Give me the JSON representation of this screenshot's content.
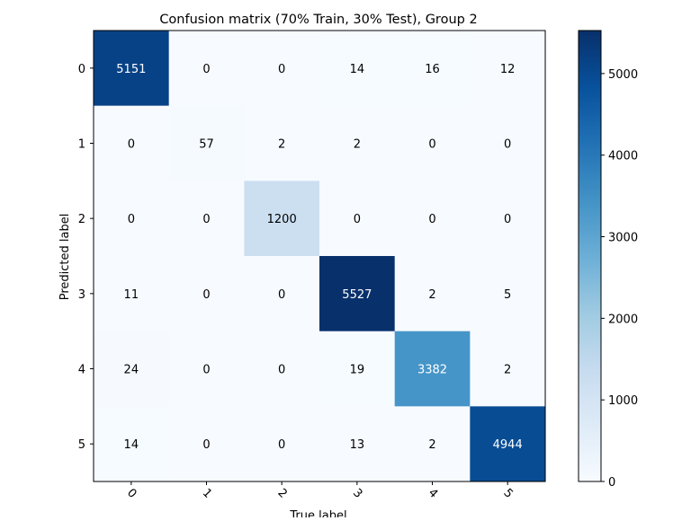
{
  "chart_data": {
    "type": "heatmap",
    "title": "Confusion matrix (70% Train, 30% Test), Group 2",
    "xlabel": "True label",
    "ylabel": "Predicted label",
    "x_tick_labels": [
      "0",
      "1",
      "2",
      "3",
      "4",
      "5"
    ],
    "y_tick_labels": [
      "0",
      "1",
      "2",
      "3",
      "4",
      "5"
    ],
    "values": [
      [
        5151,
        0,
        0,
        14,
        16,
        12
      ],
      [
        0,
        57,
        2,
        2,
        0,
        0
      ],
      [
        0,
        0,
        1200,
        0,
        0,
        0
      ],
      [
        11,
        0,
        0,
        5527,
        2,
        5
      ],
      [
        24,
        0,
        0,
        19,
        3382,
        2
      ],
      [
        14,
        0,
        0,
        13,
        2,
        4944
      ]
    ],
    "colorbar": {
      "range": [
        0,
        5527
      ],
      "ticks": [
        0,
        1000,
        2000,
        3000,
        4000,
        5000
      ],
      "colormap": "Blues",
      "colormap_stops": [
        "#f7fbff",
        "#deebf7",
        "#c6dbef",
        "#9ecae1",
        "#6baed6",
        "#4292c6",
        "#2171b5",
        "#08519c",
        "#08306b"
      ]
    },
    "x_tick_rotation_deg": 45,
    "grid": false
  }
}
